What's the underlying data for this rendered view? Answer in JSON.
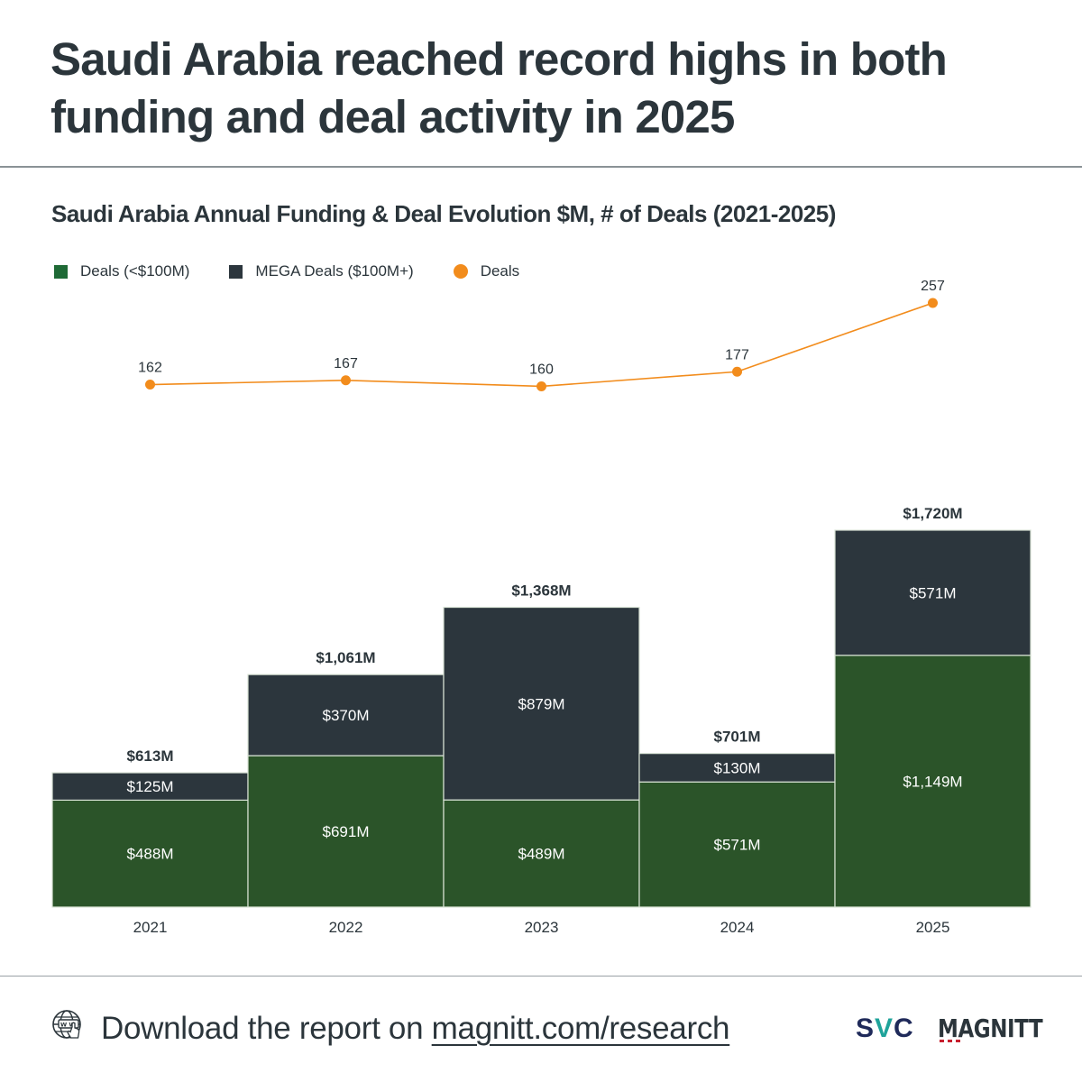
{
  "headline": "Saudi Arabia reached record highs in both funding and deal activity in 2025",
  "colors": {
    "deals_small": "#2b5429",
    "mega_deals": "#2c363d",
    "deals_line": "#f28c1c",
    "text": "#2b353b",
    "bar_label": "#ffffff",
    "separator": "#d9e3d6"
  },
  "legend": {
    "items": [
      {
        "label": "Deals (<$100M)",
        "color": "#1f6a36",
        "shape": "square"
      },
      {
        "label": "MEGA Deals ($100M+)",
        "color": "#2c363d",
        "shape": "square"
      },
      {
        "label": "Deals",
        "color": "#f28c1c",
        "shape": "circle"
      }
    ]
  },
  "chart_data": {
    "type": "bar",
    "subtype": "stacked bar + line (dual axis)",
    "title": "Saudi Arabia Annual Funding & Deal Evolution $M, # of Deals (2021-2025)",
    "xlabel": "",
    "ylabel": "",
    "categories": [
      "2021",
      "2022",
      "2023",
      "2024",
      "2025"
    ],
    "series": [
      {
        "name": "Deals (<$100M)",
        "kind": "bar",
        "unit": "$M",
        "values": [
          488,
          691,
          489,
          571,
          1149
        ],
        "labels": [
          "$488M",
          "$691M",
          "$489M",
          "$571M",
          "$1,149M"
        ]
      },
      {
        "name": "MEGA Deals ($100M+)",
        "kind": "bar",
        "unit": "$M",
        "values": [
          125,
          370,
          879,
          130,
          571
        ],
        "labels": [
          "$125M",
          "$370M",
          "$879M",
          "$130M",
          "$571M"
        ]
      },
      {
        "name": "Deals",
        "kind": "line",
        "unit": "# of deals",
        "values": [
          162,
          167,
          160,
          177,
          257
        ],
        "labels": [
          "162",
          "167",
          "160",
          "177",
          "257"
        ]
      }
    ],
    "totals": [
      613,
      1061,
      1368,
      701,
      1720
    ],
    "total_labels": [
      "$613M",
      "$1,061M",
      "$1,368M",
      "$701M",
      "$1,720M"
    ],
    "bar_ylim": [
      0,
      1720
    ],
    "line_ylim": [
      -395.8,
      257
    ],
    "grid": false,
    "legend_position": "top-left",
    "axes_visible": false
  },
  "footer": {
    "icon": "www-globe-click-icon",
    "text_prefix": "Download the report on ",
    "link": "magnitt.com/research",
    "logos": {
      "svc_left": "S",
      "svc_mid": "V",
      "svc_right": "C",
      "magnitt": "MAGNITT"
    }
  }
}
